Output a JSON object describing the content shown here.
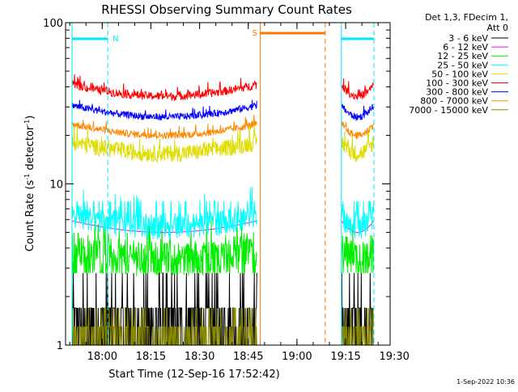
{
  "chart_data": {
    "type": "line",
    "title": "RHESSI Observing Summary Count Rates",
    "xlabel": "Start Time (12-Sep-16 17:52:42)",
    "ylabel_main": "Count Rate (s",
    "ylabel_sup1": "-1",
    "ylabel_mid": " detector",
    "ylabel_sup2": "-1",
    "ylabel_end": ")",
    "yscale": "log",
    "xlim_min": [
      -4,
      96
    ],
    "ylim": [
      1,
      100
    ],
    "x_ticks": [
      {
        "min": 7.3,
        "label": "18:00"
      },
      {
        "min": 22.3,
        "label": "18:15"
      },
      {
        "min": 37.3,
        "label": "18:30"
      },
      {
        "min": 52.3,
        "label": "18:45"
      },
      {
        "min": 67.3,
        "label": "19:00"
      },
      {
        "min": 82.3,
        "label": "19:15"
      },
      {
        "min": 97.3,
        "label": "19:30"
      }
    ],
    "y_ticks": [
      {
        "value": 1,
        "label": "1"
      },
      {
        "value": 10,
        "label": "10"
      },
      {
        "value": 100,
        "label": "100"
      }
    ],
    "legend_header": [
      "Det 1,3, FDecim 1,",
      "Att 0"
    ],
    "legend_placement": "right",
    "date_stamp": "1-Sep-2022 10:36",
    "data_windows_min": [
      [
        -2,
        55
      ],
      [
        81,
        91
      ]
    ],
    "series": [
      {
        "name": "3 - 6 keV",
        "color": "#000000",
        "level": 1.7
      },
      {
        "name": "6 - 12 keV",
        "color": "#ff00ff",
        "level": 5.0
      },
      {
        "name": "12 - 25 keV",
        "color": "#00ee00",
        "level": 3.5
      },
      {
        "name": "25 - 50 keV",
        "color": "#00ffff",
        "level": 5.5
      },
      {
        "name": "50 - 100 keV",
        "color": "#dddd00",
        "level": 15.5
      },
      {
        "name": "100 - 300 keV",
        "color": "#ff0000",
        "level": 35
      },
      {
        "name": "300 - 800 keV",
        "color": "#0000ff",
        "level": 26
      },
      {
        "name": "800 - 7000 keV",
        "color": "#ff8800",
        "level": 20
      },
      {
        "name": "7000 - 15000 keV",
        "color": "#888800",
        "level": 1.3
      }
    ],
    "flags": [
      {
        "label": "N",
        "color": "#00e5ff",
        "intervals_min": [
          [
            -2,
            9
          ],
          [
            81,
            91
          ]
        ]
      },
      {
        "label": "S",
        "color": "#ff7700",
        "intervals_min": [
          [
            56,
            76
          ]
        ]
      }
    ]
  }
}
